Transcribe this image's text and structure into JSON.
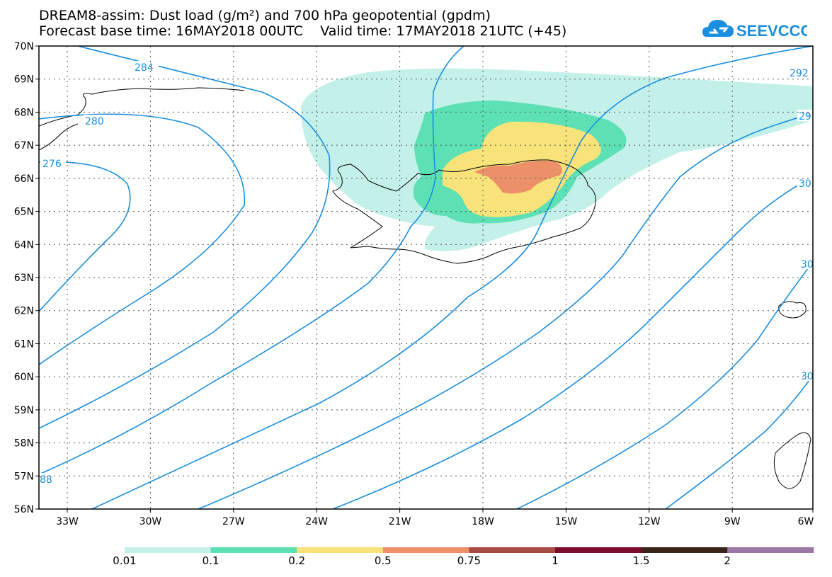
{
  "header": {
    "title_line1": "DREAM8-assim: Dust load (g/m²) and 700 hPa geopotential (gpdm)",
    "title_line2": "Forecast base time: 16MAY2018 00UTC    Valid time: 17MAY2018 21UTC (+45)",
    "logo_text": "SEEVCCC",
    "logo_icon": "cloud-icon"
  },
  "map": {
    "lat_labels": [
      "70N",
      "69N",
      "68N",
      "67N",
      "66N",
      "65N",
      "64N",
      "63N",
      "62N",
      "61N",
      "60N",
      "59N",
      "58N",
      "57N",
      "56N"
    ],
    "lon_labels": [
      "33W",
      "30W",
      "27W",
      "24W",
      "21W",
      "18W",
      "15W",
      "12W",
      "9W",
      "6W"
    ],
    "contour_labels": [
      "284",
      "280",
      "276",
      "88",
      "292",
      "29",
      "30",
      "30",
      "30"
    ],
    "contour_color": "#1a8fe0"
  },
  "legend": {
    "colors": [
      "#c4f0ea",
      "#5ce0b4",
      "#f7e37a",
      "#ec9069",
      "#a84b45",
      "#7a0c2c",
      "#3a2418",
      "#9b77a6"
    ],
    "labels": [
      "0.01",
      "0.1",
      "0.2",
      "0.5",
      "0.75",
      "1",
      "1.5",
      "2"
    ]
  }
}
